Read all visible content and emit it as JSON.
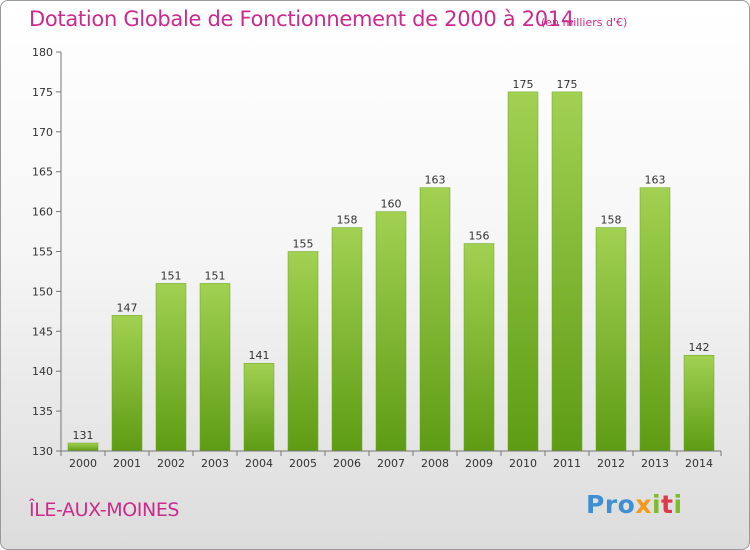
{
  "title": "Dotation Globale de Fonctionnement de 2000 à 2014",
  "unit_note": "(en milliers d'€)",
  "commune": "ÎLE-AUX-MOINES",
  "logo": {
    "text": "Proxiti",
    "colors": [
      "#3f8fd2",
      "#f19a1e",
      "#7dbb2a",
      "#e2394a"
    ]
  },
  "chart_data": {
    "type": "bar",
    "title": "Dotation Globale de Fonctionnement de 2000 à 2014",
    "subtitle": "(en milliers d'€)",
    "xlabel": "",
    "ylabel": "",
    "categories": [
      "2000",
      "2001",
      "2002",
      "2003",
      "2004",
      "2005",
      "2006",
      "2007",
      "2008",
      "2009",
      "2010",
      "2011",
      "2012",
      "2013",
      "2014"
    ],
    "values": [
      131,
      147,
      151,
      151,
      141,
      155,
      158,
      160,
      163,
      156,
      175,
      175,
      158,
      163,
      142
    ],
    "ylim": [
      130,
      180
    ],
    "yticks": [
      130,
      135,
      140,
      145,
      150,
      155,
      160,
      165,
      170,
      175,
      180
    ],
    "grid": false,
    "legend": "none",
    "bar_color_top": "#a2d152",
    "bar_color_bottom": "#5e9c15",
    "title_color": "#cc2a8c"
  }
}
